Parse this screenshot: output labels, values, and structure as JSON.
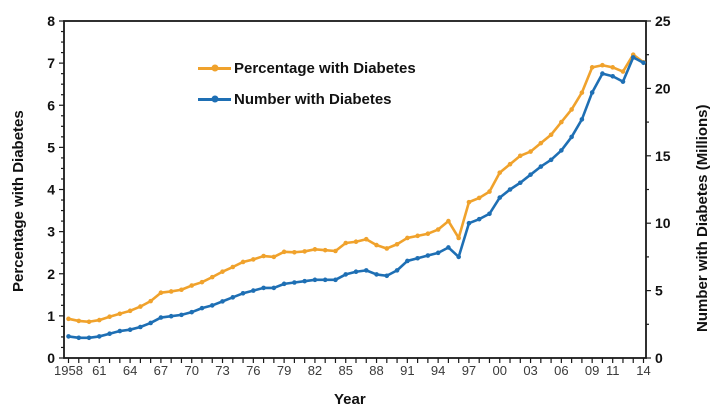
{
  "chart": {
    "y_left_title": "Percentage with Diabetes",
    "y_right_title": "Number with Diabetes (Millions)",
    "x_title": "Year",
    "legend": [
      {
        "label": "Percentage with Diabetes",
        "color": "#F0A22C"
      },
      {
        "label": "Number with Diabetes",
        "color": "#1E6FB4"
      }
    ],
    "colors": {
      "axis": "#1A1A1A",
      "x_tick_text": "#3A3A3A",
      "y_tick_text": "#111111",
      "background": "#FFFFFF"
    }
  },
  "chart_data": {
    "type": "line",
    "x": [
      1958,
      1959,
      1960,
      1961,
      1962,
      1963,
      1964,
      1965,
      1966,
      1967,
      1968,
      1969,
      1970,
      1971,
      1972,
      1973,
      1974,
      1975,
      1976,
      1977,
      1978,
      1979,
      1980,
      1981,
      1982,
      1983,
      1984,
      1985,
      1986,
      1987,
      1988,
      1989,
      1990,
      1991,
      1992,
      1993,
      1994,
      1995,
      1996,
      1997,
      1998,
      1999,
      2000,
      2001,
      2002,
      2003,
      2004,
      2005,
      2006,
      2007,
      2008,
      2009,
      2010,
      2011,
      2012,
      2013,
      2014
    ],
    "x_tick_years": [
      1958,
      1961,
      1964,
      1967,
      1970,
      1973,
      1976,
      1979,
      1982,
      1985,
      1988,
      1991,
      1994,
      1997,
      2000,
      2003,
      2006,
      2009,
      2011,
      2014
    ],
    "x_tick_labels": [
      "1958",
      "61",
      "64",
      "67",
      "70",
      "73",
      "76",
      "79",
      "82",
      "85",
      "88",
      "91",
      "94",
      "97",
      "00",
      "03",
      "06",
      "09",
      "11",
      "14"
    ],
    "xlabel": "Year",
    "grid": false,
    "legend_position": "upper-left-inside",
    "y_left": {
      "label": "Percentage with Diabetes",
      "min": 0,
      "max": 8,
      "major_tick": 1,
      "minor_tick": 0.25,
      "tick_labels": [
        0,
        1,
        2,
        3,
        4,
        5,
        6,
        7,
        8
      ]
    },
    "y_right": {
      "label": "Number with Diabetes (Millions)",
      "min": 0,
      "max": 25,
      "major_tick": 5,
      "minor_tick": 2.5,
      "tick_labels": [
        0,
        5,
        10,
        15,
        20,
        25
      ]
    },
    "series": [
      {
        "name": "Percentage with Diabetes",
        "axis": "left",
        "color": "#F0A22C",
        "values": [
          0.93,
          0.88,
          0.86,
          0.9,
          0.98,
          1.05,
          1.12,
          1.22,
          1.35,
          1.55,
          1.58,
          1.62,
          1.72,
          1.8,
          1.92,
          2.05,
          2.16,
          2.28,
          2.34,
          2.42,
          2.4,
          2.52,
          2.51,
          2.53,
          2.58,
          2.56,
          2.54,
          2.73,
          2.76,
          2.82,
          2.68,
          2.6,
          2.7,
          2.85,
          2.9,
          2.95,
          3.05,
          3.25,
          2.85,
          3.7,
          3.8,
          3.95,
          4.4,
          4.6,
          4.8,
          4.9,
          5.1,
          5.3,
          5.6,
          5.9,
          6.3,
          6.9,
          6.95,
          6.9,
          6.8,
          7.2,
          7.02
        ]
      },
      {
        "name": "Number with Diabetes",
        "axis": "right",
        "color": "#1E6FB4",
        "values": [
          1.6,
          1.5,
          1.5,
          1.6,
          1.8,
          2.0,
          2.1,
          2.3,
          2.6,
          3.0,
          3.1,
          3.2,
          3.4,
          3.7,
          3.9,
          4.2,
          4.5,
          4.8,
          5.0,
          5.2,
          5.2,
          5.5,
          5.6,
          5.7,
          5.8,
          5.8,
          5.8,
          6.2,
          6.4,
          6.5,
          6.2,
          6.1,
          6.5,
          7.2,
          7.4,
          7.6,
          7.8,
          8.2,
          7.5,
          10.0,
          10.3,
          10.7,
          11.9,
          12.5,
          13.0,
          13.6,
          14.2,
          14.7,
          15.4,
          16.4,
          17.7,
          19.7,
          21.1,
          20.9,
          20.5,
          22.3,
          21.9
        ]
      }
    ]
  }
}
